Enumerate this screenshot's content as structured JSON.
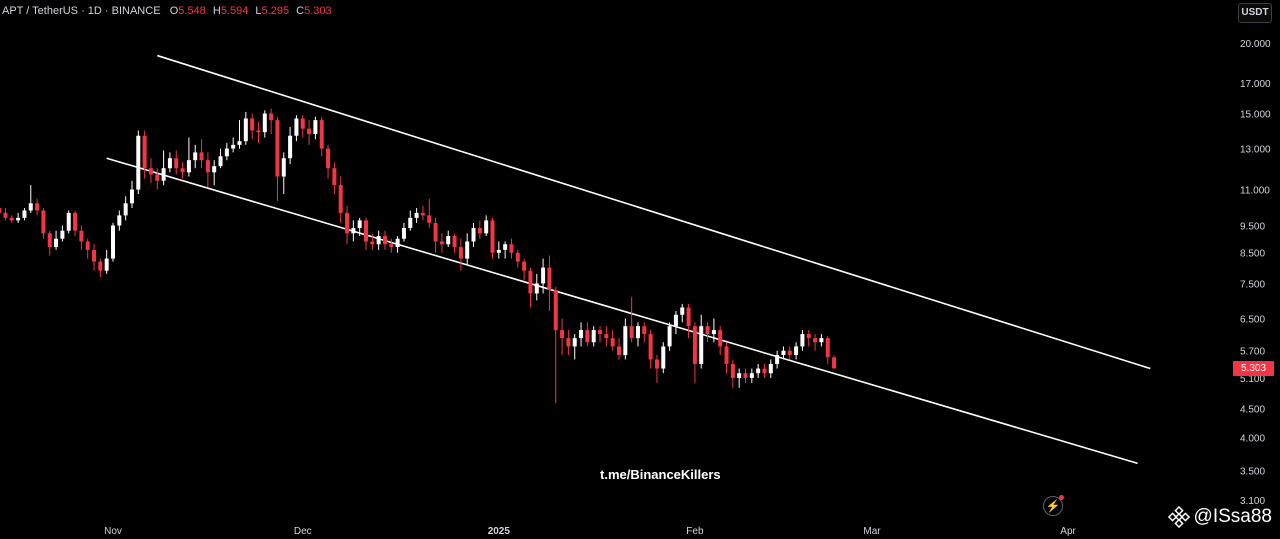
{
  "header": {
    "symbol": "APT / TetherUS · 1D · BINANCE",
    "o_label": "O",
    "o_value": "5.548",
    "h_label": "H",
    "h_value": "5.594",
    "l_label": "L",
    "l_value": "5.295",
    "c_label": "C",
    "c_value": "5.303"
  },
  "unit_button": "USDT",
  "last_price": "5.303",
  "watermark": "t.me/BinanceKillers",
  "handle": "@ISsa88",
  "colors": {
    "up": "#ffffff",
    "down": "#f23645",
    "channel": "#ffffff",
    "background": "#000000",
    "axis_text": "#d1d4dc"
  },
  "icons": {
    "flash": "lightning-icon",
    "brand": "binance-diamond-icon"
  },
  "chart_data": {
    "type": "candlestick",
    "y_scale": "log",
    "ylim": [
      3.1,
      22
    ],
    "y_ticks": [
      "20.000",
      "17.000",
      "15.000",
      "13.000",
      "11.000",
      "9.500",
      "8.500",
      "7.500",
      "6.500",
      "5.700",
      "5.100",
      "4.500",
      "4.000",
      "3.500",
      "3.100"
    ],
    "x_ticks": [
      "Nov",
      "Dec",
      "2025",
      "Feb",
      "Mar",
      "Apr"
    ],
    "date_range": [
      "2024-10-13",
      "2025-03-28"
    ],
    "candles": [
      [
        10.4,
        10.2,
        10.7,
        10.0
      ],
      [
        10.2,
        10.0,
        10.3,
        9.9
      ],
      [
        10.0,
        9.8,
        10.2,
        9.7
      ],
      [
        9.8,
        9.7,
        9.9,
        9.6
      ],
      [
        9.7,
        9.8,
        10.0,
        9.6
      ],
      [
        9.8,
        10.1,
        10.2,
        9.7
      ],
      [
        10.1,
        10.4,
        11.2,
        10.0
      ],
      [
        10.4,
        10.1,
        10.6,
        9.9
      ],
      [
        10.1,
        9.2,
        10.2,
        9.0
      ],
      [
        9.2,
        8.7,
        9.3,
        8.4
      ],
      [
        8.7,
        9.0,
        9.3,
        8.6
      ],
      [
        9.0,
        9.3,
        9.5,
        8.9
      ],
      [
        9.3,
        10.0,
        10.1,
        9.2
      ],
      [
        10.0,
        9.3,
        10.1,
        9.1
      ],
      [
        9.3,
        8.9,
        9.5,
        8.6
      ],
      [
        8.9,
        8.6,
        9.0,
        8.3
      ],
      [
        8.6,
        8.2,
        8.8,
        7.9
      ],
      [
        8.2,
        7.9,
        8.3,
        7.7
      ],
      [
        7.9,
        8.3,
        8.6,
        7.8
      ],
      [
        8.3,
        9.5,
        9.6,
        8.2
      ],
      [
        9.5,
        9.9,
        10.1,
        9.3
      ],
      [
        9.9,
        10.4,
        10.7,
        9.7
      ],
      [
        10.4,
        11.0,
        11.4,
        10.2
      ],
      [
        11.0,
        13.7,
        14.0,
        10.8
      ],
      [
        13.7,
        12.0,
        14.0,
        11.5
      ],
      [
        12.0,
        11.7,
        12.5,
        11.3
      ],
      [
        11.7,
        11.4,
        12.0,
        11.0
      ],
      [
        11.4,
        12.0,
        12.9,
        11.2
      ],
      [
        12.0,
        12.5,
        12.8,
        11.8
      ],
      [
        12.5,
        12.0,
        12.9,
        11.7
      ],
      [
        12.0,
        11.8,
        12.3,
        11.5
      ],
      [
        11.8,
        12.4,
        13.6,
        11.6
      ],
      [
        12.4,
        12.8,
        13.2,
        12.0
      ],
      [
        12.8,
        12.4,
        13.5,
        12.0
      ],
      [
        12.4,
        11.8,
        12.8,
        11.1
      ],
      [
        11.8,
        12.1,
        12.4,
        11.2
      ],
      [
        12.1,
        12.6,
        13.0,
        12.0
      ],
      [
        12.6,
        13.0,
        13.3,
        12.4
      ],
      [
        13.0,
        13.2,
        13.6,
        12.8
      ],
      [
        13.2,
        13.4,
        14.6,
        13.0
      ],
      [
        13.4,
        14.7,
        15.1,
        13.2
      ],
      [
        14.7,
        14.0,
        15.0,
        13.5
      ],
      [
        14.0,
        13.9,
        14.5,
        13.3
      ],
      [
        13.9,
        15.0,
        15.2,
        13.6
      ],
      [
        15.0,
        14.6,
        15.3,
        13.8
      ],
      [
        14.6,
        11.6,
        14.8,
        10.5
      ],
      [
        11.6,
        12.5,
        12.8,
        10.8
      ],
      [
        12.5,
        13.7,
        14.2,
        12.2
      ],
      [
        13.7,
        14.7,
        14.9,
        13.4
      ],
      [
        14.7,
        14.1,
        14.9,
        13.6
      ],
      [
        14.1,
        13.8,
        14.6,
        13.2
      ],
      [
        13.8,
        14.6,
        14.8,
        13.5
      ],
      [
        14.6,
        13.0,
        14.8,
        12.6
      ],
      [
        13.0,
        12.0,
        13.2,
        11.5
      ],
      [
        12.0,
        11.2,
        12.3,
        10.8
      ],
      [
        11.2,
        10.0,
        11.6,
        9.6
      ],
      [
        10.0,
        9.2,
        10.3,
        8.8
      ],
      [
        9.2,
        9.4,
        9.7,
        8.9
      ],
      [
        9.4,
        9.7,
        9.8,
        9.1
      ],
      [
        9.7,
        8.9,
        9.8,
        8.6
      ],
      [
        8.9,
        8.8,
        9.2,
        8.6
      ],
      [
        8.8,
        9.1,
        9.3,
        8.6
      ],
      [
        9.1,
        8.8,
        9.3,
        8.6
      ],
      [
        8.8,
        8.7,
        9.0,
        8.5
      ],
      [
        8.7,
        9.0,
        9.1,
        8.5
      ],
      [
        9.0,
        9.4,
        9.6,
        8.9
      ],
      [
        9.4,
        9.8,
        10.1,
        9.3
      ],
      [
        9.8,
        10.0,
        10.2,
        9.6
      ],
      [
        10.0,
        9.9,
        10.3,
        9.7
      ],
      [
        9.9,
        9.6,
        10.6,
        9.4
      ],
      [
        9.6,
        8.9,
        9.8,
        8.5
      ],
      [
        8.9,
        8.8,
        9.2,
        8.5
      ],
      [
        8.8,
        9.1,
        9.3,
        8.7
      ],
      [
        9.1,
        8.7,
        9.2,
        8.5
      ],
      [
        8.7,
        8.3,
        9.0,
        7.9
      ],
      [
        8.3,
        8.9,
        9.2,
        8.1
      ],
      [
        8.9,
        9.4,
        9.6,
        8.7
      ],
      [
        9.4,
        9.2,
        9.7,
        9.0
      ],
      [
        9.2,
        9.7,
        9.9,
        9.1
      ],
      [
        9.7,
        8.5,
        9.8,
        8.3
      ],
      [
        8.5,
        8.6,
        8.9,
        8.3
      ],
      [
        8.6,
        8.8,
        8.9,
        8.3
      ],
      [
        8.8,
        8.5,
        9.0,
        8.3
      ],
      [
        8.5,
        8.2,
        8.6,
        8.0
      ],
      [
        8.2,
        7.9,
        8.3,
        7.6
      ],
      [
        7.9,
        7.2,
        8.0,
        6.8
      ],
      [
        7.2,
        7.5,
        7.8,
        7.0
      ],
      [
        7.5,
        8.0,
        8.3,
        7.2
      ],
      [
        8.0,
        7.3,
        8.4,
        6.7
      ],
      [
        7.3,
        6.2,
        7.4,
        4.6
      ],
      [
        6.2,
        6.0,
        6.5,
        5.6
      ],
      [
        6.0,
        5.8,
        6.2,
        5.6
      ],
      [
        5.8,
        6.0,
        6.1,
        5.5
      ],
      [
        6.0,
        6.2,
        6.4,
        5.8
      ],
      [
        6.2,
        5.9,
        6.4,
        5.8
      ],
      [
        5.9,
        6.2,
        6.3,
        5.8
      ],
      [
        6.2,
        6.1,
        6.3,
        5.9
      ],
      [
        6.1,
        6.0,
        6.3,
        5.8
      ],
      [
        6.0,
        5.8,
        6.2,
        5.7
      ],
      [
        5.8,
        5.6,
        6.0,
        5.5
      ],
      [
        5.6,
        6.3,
        6.5,
        5.5
      ],
      [
        6.3,
        6.0,
        7.1,
        5.9
      ],
      [
        6.0,
        6.3,
        6.4,
        5.8
      ],
      [
        6.3,
        6.1,
        6.4,
        5.9
      ],
      [
        6.1,
        5.5,
        6.2,
        5.3
      ],
      [
        5.5,
        5.3,
        5.6,
        5.0
      ],
      [
        5.3,
        5.8,
        5.9,
        5.2
      ],
      [
        5.8,
        6.3,
        6.4,
        5.7
      ],
      [
        6.3,
        6.6,
        6.7,
        6.1
      ],
      [
        6.6,
        6.8,
        6.9,
        6.4
      ],
      [
        6.8,
        6.3,
        6.9,
        6.0
      ],
      [
        6.3,
        5.4,
        6.4,
        5.0
      ],
      [
        5.4,
        6.3,
        6.6,
        5.3
      ],
      [
        6.3,
        6.1,
        6.4,
        5.9
      ],
      [
        6.1,
        6.2,
        6.5,
        5.9
      ],
      [
        6.2,
        5.8,
        6.3,
        5.6
      ],
      [
        5.8,
        5.4,
        5.9,
        5.2
      ],
      [
        5.4,
        5.1,
        5.5,
        4.9
      ],
      [
        5.1,
        5.2,
        5.3,
        4.9
      ],
      [
        5.2,
        5.1,
        5.3,
        5.0
      ],
      [
        5.1,
        5.2,
        5.3,
        5.0
      ],
      [
        5.2,
        5.3,
        5.4,
        5.1
      ],
      [
        5.3,
        5.2,
        5.4,
        5.1
      ],
      [
        5.2,
        5.4,
        5.5,
        5.1
      ],
      [
        5.4,
        5.6,
        5.7,
        5.3
      ],
      [
        5.6,
        5.7,
        5.8,
        5.5
      ],
      [
        5.7,
        5.6,
        5.8,
        5.5
      ],
      [
        5.6,
        5.8,
        5.9,
        5.5
      ],
      [
        5.8,
        6.1,
        6.2,
        5.7
      ],
      [
        6.1,
        6.0,
        6.2,
        5.8
      ],
      [
        6.0,
        5.9,
        6.1,
        5.7
      ],
      [
        5.9,
        6.0,
        6.1,
        5.8
      ],
      [
        6.0,
        5.55,
        6.05,
        5.4
      ],
      [
        5.548,
        5.303,
        5.594,
        5.295
      ]
    ],
    "candle_format": [
      "open",
      "close",
      "high",
      "low"
    ],
    "trendlines": [
      {
        "name": "upper-channel",
        "points": [
          [
            "2024-11-08",
            19.0
          ],
          [
            "2025-04-14",
            5.3
          ]
        ]
      },
      {
        "name": "lower-channel",
        "points": [
          [
            "2024-10-31",
            12.5
          ],
          [
            "2025-04-12",
            3.6
          ]
        ]
      }
    ]
  }
}
